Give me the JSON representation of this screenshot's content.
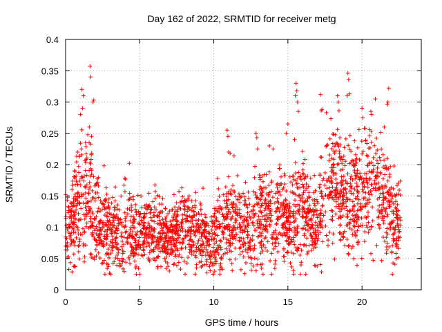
{
  "chart_data": {
    "type": "scatter",
    "title": "Day 162 of 2022, SRMTID for receiver metg",
    "xlabel": "GPS time / hours",
    "ylabel": "SRMTID / TECUs",
    "xlim": [
      0,
      24
    ],
    "ylim": [
      0,
      0.4
    ],
    "x_ticks": [
      0,
      5,
      10,
      15,
      20
    ],
    "x_tick_labels": [
      "0",
      "5",
      "10",
      "15",
      "20"
    ],
    "y_ticks": [
      0,
      0.05,
      0.1,
      0.15,
      0.2,
      0.25,
      0.3,
      0.35,
      0.4
    ],
    "y_tick_labels": [
      "0",
      "0.05",
      "0.1",
      "0.15",
      "0.2",
      "0.25",
      "0.3",
      "0.35",
      "0.4"
    ],
    "grid": true,
    "marker": "+",
    "marker_color": "#ff0000",
    "data_span_hours": [
      0,
      22.6
    ],
    "envelope": [
      {
        "x": 0.0,
        "y": 0.1,
        "spread": 0.03
      },
      {
        "x": 0.5,
        "y": 0.11,
        "spread": 0.035
      },
      {
        "x": 1.0,
        "y": 0.14,
        "spread": 0.05
      },
      {
        "x": 1.5,
        "y": 0.16,
        "spread": 0.06
      },
      {
        "x": 2.0,
        "y": 0.11,
        "spread": 0.04
      },
      {
        "x": 3.0,
        "y": 0.09,
        "spread": 0.03
      },
      {
        "x": 4.0,
        "y": 0.1,
        "spread": 0.035
      },
      {
        "x": 5.0,
        "y": 0.09,
        "spread": 0.03
      },
      {
        "x": 6.0,
        "y": 0.1,
        "spread": 0.03
      },
      {
        "x": 7.0,
        "y": 0.08,
        "spread": 0.025
      },
      {
        "x": 8.0,
        "y": 0.11,
        "spread": 0.03
      },
      {
        "x": 9.0,
        "y": 0.09,
        "spread": 0.03
      },
      {
        "x": 10.0,
        "y": 0.08,
        "spread": 0.03
      },
      {
        "x": 11.0,
        "y": 0.12,
        "spread": 0.04
      },
      {
        "x": 12.0,
        "y": 0.1,
        "spread": 0.035
      },
      {
        "x": 13.0,
        "y": 0.11,
        "spread": 0.04
      },
      {
        "x": 14.0,
        "y": 0.12,
        "spread": 0.04
      },
      {
        "x": 15.0,
        "y": 0.11,
        "spread": 0.035
      },
      {
        "x": 15.8,
        "y": 0.14,
        "spread": 0.05
      },
      {
        "x": 16.5,
        "y": 0.11,
        "spread": 0.03
      },
      {
        "x": 17.0,
        "y": 0.1,
        "spread": 0.03
      },
      {
        "x": 17.5,
        "y": 0.17,
        "spread": 0.05
      },
      {
        "x": 18.5,
        "y": 0.16,
        "spread": 0.05
      },
      {
        "x": 19.5,
        "y": 0.14,
        "spread": 0.045
      },
      {
        "x": 20.5,
        "y": 0.17,
        "spread": 0.05
      },
      {
        "x": 21.5,
        "y": 0.15,
        "spread": 0.05
      },
      {
        "x": 22.0,
        "y": 0.11,
        "spread": 0.04
      },
      {
        "x": 22.6,
        "y": 0.11,
        "spread": 0.03
      }
    ],
    "spikes": [
      {
        "x": 1.1,
        "y": 0.32
      },
      {
        "x": 1.15,
        "y": 0.29
      },
      {
        "x": 1.2,
        "y": 0.31
      },
      {
        "x": 1.65,
        "y": 0.357
      },
      {
        "x": 1.7,
        "y": 0.34
      },
      {
        "x": 1.85,
        "y": 0.3
      },
      {
        "x": 1.9,
        "y": 0.303
      },
      {
        "x": 1.0,
        "y": 0.28
      },
      {
        "x": 1.6,
        "y": 0.26
      },
      {
        "x": 1.75,
        "y": 0.245
      },
      {
        "x": 1.05,
        "y": 0.225
      },
      {
        "x": 0.8,
        "y": 0.22
      },
      {
        "x": 4.3,
        "y": 0.202
      },
      {
        "x": 2.6,
        "y": 0.198
      },
      {
        "x": 10.9,
        "y": 0.255
      },
      {
        "x": 10.95,
        "y": 0.245
      },
      {
        "x": 11.0,
        "y": 0.22
      },
      {
        "x": 11.1,
        "y": 0.218
      },
      {
        "x": 12.85,
        "y": 0.25
      },
      {
        "x": 12.9,
        "y": 0.243
      },
      {
        "x": 12.95,
        "y": 0.225
      },
      {
        "x": 13.75,
        "y": 0.23
      },
      {
        "x": 14.0,
        "y": 0.225
      },
      {
        "x": 14.9,
        "y": 0.25
      },
      {
        "x": 15.0,
        "y": 0.265
      },
      {
        "x": 15.55,
        "y": 0.33
      },
      {
        "x": 15.6,
        "y": 0.318
      },
      {
        "x": 15.65,
        "y": 0.3
      },
      {
        "x": 15.7,
        "y": 0.285
      },
      {
        "x": 15.5,
        "y": 0.31
      },
      {
        "x": 15.45,
        "y": 0.24
      },
      {
        "x": 17.2,
        "y": 0.312
      },
      {
        "x": 17.25,
        "y": 0.286
      },
      {
        "x": 17.3,
        "y": 0.288
      },
      {
        "x": 18.35,
        "y": 0.31
      },
      {
        "x": 18.4,
        "y": 0.3
      },
      {
        "x": 18.45,
        "y": 0.286
      },
      {
        "x": 19.05,
        "y": 0.346
      },
      {
        "x": 19.1,
        "y": 0.336
      },
      {
        "x": 19.15,
        "y": 0.313
      },
      {
        "x": 19.0,
        "y": 0.31
      },
      {
        "x": 20.0,
        "y": 0.29
      },
      {
        "x": 20.05,
        "y": 0.275
      },
      {
        "x": 20.6,
        "y": 0.285
      },
      {
        "x": 20.65,
        "y": 0.28
      },
      {
        "x": 20.9,
        "y": 0.305
      },
      {
        "x": 21.8,
        "y": 0.322
      },
      {
        "x": 21.75,
        "y": 0.3
      },
      {
        "x": 21.7,
        "y": 0.296
      },
      {
        "x": 21.5,
        "y": 0.26
      },
      {
        "x": 19.8,
        "y": 0.256
      },
      {
        "x": 20.2,
        "y": 0.258
      },
      {
        "x": 6.2,
        "y": 0.035
      },
      {
        "x": 7.0,
        "y": 0.03
      },
      {
        "x": 10.4,
        "y": 0.032
      },
      {
        "x": 10.45,
        "y": 0.038
      },
      {
        "x": 3.2,
        "y": 0.042
      },
      {
        "x": 0.6,
        "y": 0.038
      },
      {
        "x": 22.3,
        "y": 0.058
      },
      {
        "x": 22.35,
        "y": 0.07
      }
    ]
  }
}
